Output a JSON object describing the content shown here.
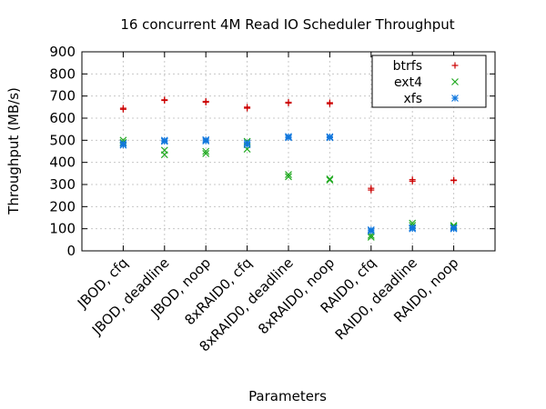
{
  "chart_data": {
    "type": "scatter",
    "title": "16 concurrent 4M Read IO Scheduler Throughput",
    "xlabel": "Parameters",
    "ylabel": "Throughput (MB/s)",
    "ylim": [
      0,
      900
    ],
    "yticks": [
      0,
      100,
      200,
      300,
      400,
      500,
      600,
      700,
      800,
      900
    ],
    "grid": true,
    "legend_position": "top-right",
    "categories": [
      "JBOD, cfq",
      "JBOD, deadline",
      "JBOD, noop",
      "8xRAID0, cfq",
      "8xRAID0, deadline",
      "8xRAID0, noop",
      "RAID0, cfq",
      "RAID0, deadline",
      "RAID0, noop"
    ],
    "series": [
      {
        "name": "btrfs",
        "color": "#cc0000",
        "marker": "plus",
        "points": [
          [
            0,
            640
          ],
          [
            0,
            645
          ],
          [
            1,
            680
          ],
          [
            1,
            683
          ],
          [
            2,
            672
          ],
          [
            2,
            676
          ],
          [
            3,
            645
          ],
          [
            3,
            650
          ],
          [
            4,
            668
          ],
          [
            4,
            672
          ],
          [
            5,
            665
          ],
          [
            5,
            670
          ],
          [
            6,
            275
          ],
          [
            6,
            283
          ],
          [
            7,
            315
          ],
          [
            7,
            322
          ],
          [
            8,
            318
          ],
          [
            8,
            320
          ]
        ]
      },
      {
        "name": "ext4",
        "color": "#22aa22",
        "marker": "cross",
        "points": [
          [
            0,
            500
          ],
          [
            0,
            490
          ],
          [
            1,
            455
          ],
          [
            1,
            435
          ],
          [
            2,
            450
          ],
          [
            2,
            440
          ],
          [
            3,
            495
          ],
          [
            3,
            460
          ],
          [
            4,
            345
          ],
          [
            4,
            335
          ],
          [
            5,
            325
          ],
          [
            5,
            320
          ],
          [
            6,
            70
          ],
          [
            6,
            62
          ],
          [
            7,
            125
          ],
          [
            7,
            115
          ],
          [
            8,
            115
          ],
          [
            8,
            110
          ]
        ]
      },
      {
        "name": "xfs",
        "color": "#1177dd",
        "marker": "star",
        "points": [
          [
            0,
            478
          ],
          [
            0,
            485
          ],
          [
            1,
            495
          ],
          [
            1,
            500
          ],
          [
            2,
            497
          ],
          [
            2,
            502
          ],
          [
            3,
            480
          ],
          [
            3,
            488
          ],
          [
            4,
            512
          ],
          [
            4,
            517
          ],
          [
            5,
            512
          ],
          [
            5,
            516
          ],
          [
            6,
            90
          ],
          [
            6,
            95
          ],
          [
            7,
            100
          ],
          [
            7,
            105
          ],
          [
            8,
            100
          ],
          [
            8,
            104
          ]
        ]
      }
    ]
  }
}
